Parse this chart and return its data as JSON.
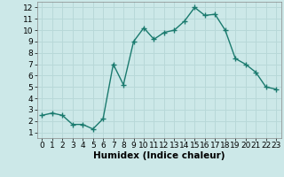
{
  "x": [
    0,
    1,
    2,
    3,
    4,
    5,
    6,
    7,
    8,
    9,
    10,
    11,
    12,
    13,
    14,
    15,
    16,
    17,
    18,
    19,
    20,
    21,
    22,
    23
  ],
  "y": [
    2.5,
    2.7,
    2.5,
    1.7,
    1.7,
    1.3,
    2.2,
    7.0,
    5.2,
    9.0,
    10.2,
    9.2,
    9.8,
    10.0,
    10.8,
    12.0,
    11.3,
    11.4,
    10.0,
    7.5,
    7.0,
    6.3,
    5.0,
    4.8
  ],
  "line_color": "#1a7a6e",
  "marker": "+",
  "marker_size": 4,
  "line_width": 1.0,
  "bg_color": "#cce8e8",
  "grid_color": "#b8d8d8",
  "xlabel": "Humidex (Indice chaleur)",
  "xlabel_fontsize": 7.5,
  "tick_fontsize": 6.5,
  "xlim": [
    -0.5,
    23.5
  ],
  "ylim": [
    0.5,
    12.5
  ],
  "yticks": [
    1,
    2,
    3,
    4,
    5,
    6,
    7,
    8,
    9,
    10,
    11,
    12
  ],
  "xticks": [
    0,
    1,
    2,
    3,
    4,
    5,
    6,
    7,
    8,
    9,
    10,
    11,
    12,
    13,
    14,
    15,
    16,
    17,
    18,
    19,
    20,
    21,
    22,
    23
  ]
}
